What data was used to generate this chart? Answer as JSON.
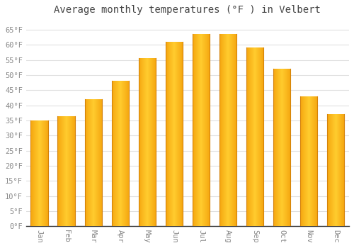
{
  "title": "Average monthly temperatures (°F ) in Velbert",
  "months": [
    "Jan",
    "Feb",
    "Mar",
    "Apr",
    "May",
    "Jun",
    "Jul",
    "Aug",
    "Sep",
    "Oct",
    "Nov",
    "Dec"
  ],
  "values": [
    35,
    36.5,
    42,
    48,
    55.5,
    61,
    63.5,
    63.5,
    59,
    52,
    43,
    37
  ],
  "bar_color_center": "#FFC930",
  "bar_color_edge": "#F5A800",
  "background_color": "#FFFFFF",
  "plot_bg_color": "#FFFFFF",
  "grid_color": "#E0E0E0",
  "ylim": [
    0,
    68
  ],
  "yticks": [
    0,
    5,
    10,
    15,
    20,
    25,
    30,
    35,
    40,
    45,
    50,
    55,
    60,
    65
  ],
  "title_fontsize": 10,
  "tick_fontsize": 7.5,
  "title_color": "#444444",
  "tick_color": "#888888"
}
